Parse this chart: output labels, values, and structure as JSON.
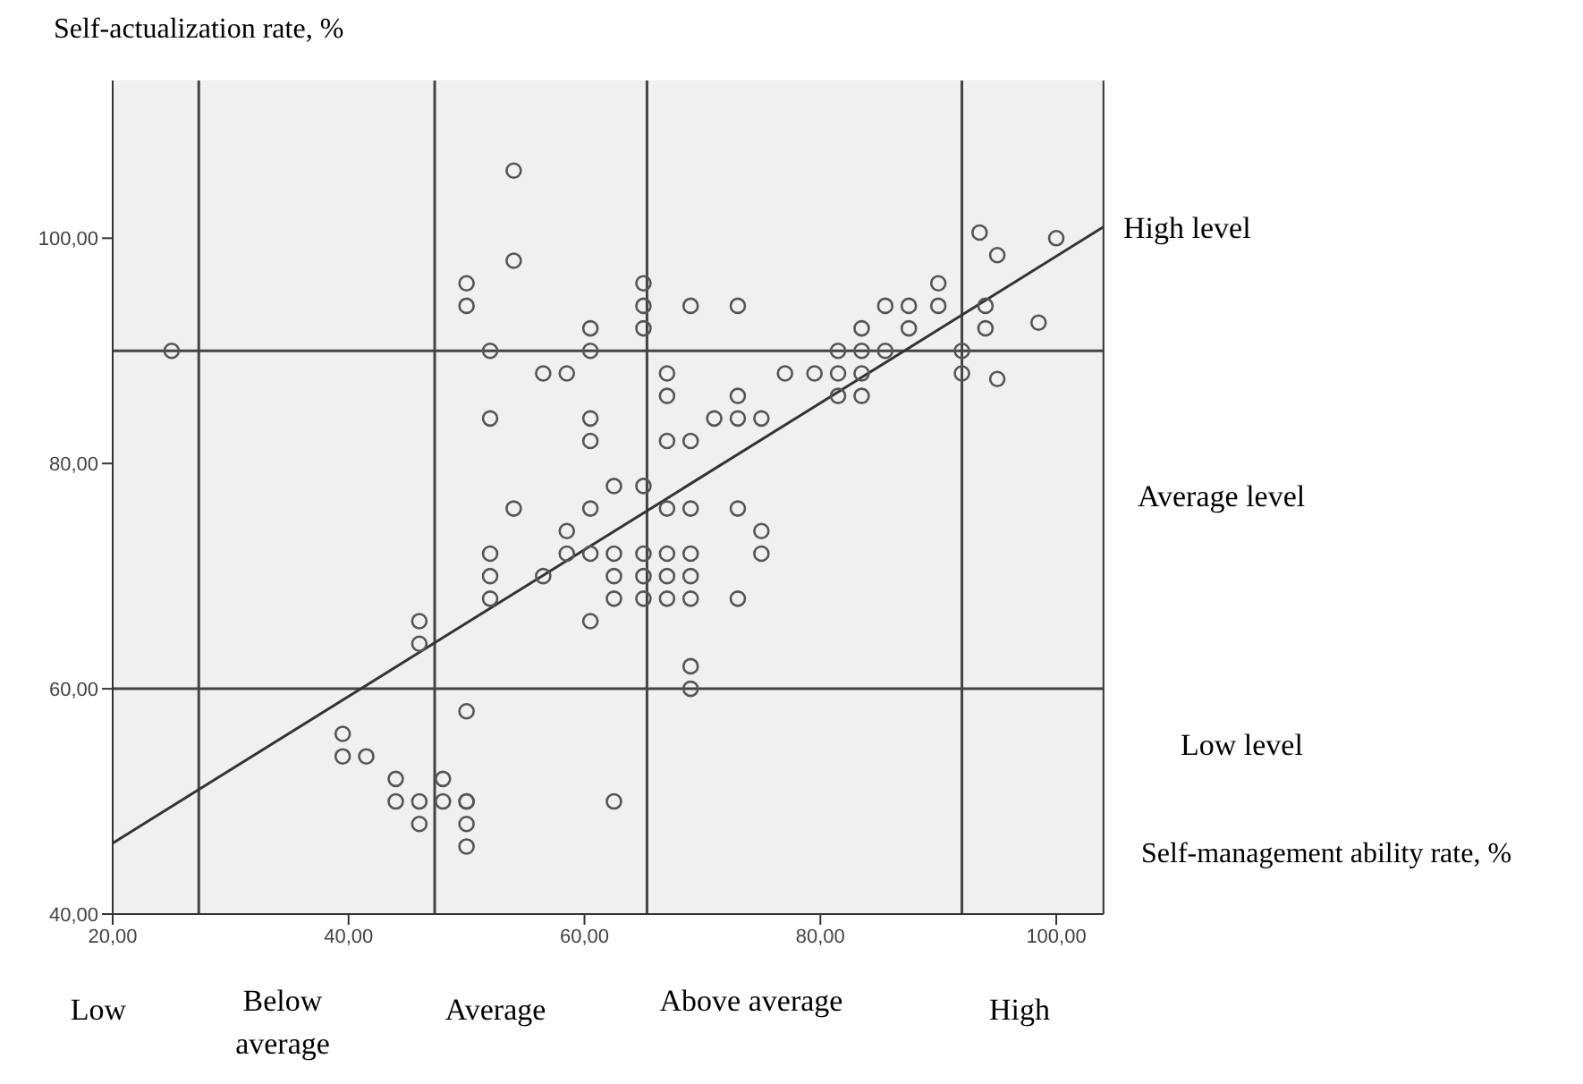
{
  "chart_data": {
    "type": "scatter",
    "xlabel": "Self-management ability rate, %",
    "ylabel": "Self-actualization rate, %",
    "xlim": [
      20,
      104
    ],
    "ylim": [
      40,
      114
    ],
    "xticks": [
      {
        "value": 20,
        "label": "20,00"
      },
      {
        "value": 40,
        "label": "40,00"
      },
      {
        "value": 60,
        "label": "60,00"
      },
      {
        "value": 80,
        "label": "80,00"
      },
      {
        "value": 100,
        "label": "100,00"
      }
    ],
    "yticks": [
      {
        "value": 40,
        "label": "40,00"
      },
      {
        "value": 60,
        "label": "60,00"
      },
      {
        "value": 80,
        "label": "80,00"
      },
      {
        "value": 100,
        "label": "100,00"
      }
    ],
    "grid": false,
    "legend": false,
    "series": [
      {
        "marker": "circle",
        "color": "#555555",
        "x": [
          25,
          39.5,
          39.5,
          41.5,
          44,
          44,
          46,
          46,
          46,
          46,
          48,
          48,
          50,
          50,
          50,
          50,
          50,
          50,
          50,
          52,
          52,
          52,
          52,
          52,
          54,
          54,
          54,
          56.5,
          56.5,
          58.5,
          58.5,
          58.5,
          60.5,
          60.5,
          60.5,
          60.5,
          60.5,
          60.5,
          60.5,
          62.5,
          62.5,
          62.5,
          62.5,
          62.5,
          65,
          65,
          65,
          65,
          65,
          65,
          65,
          67,
          67,
          67,
          67,
          67,
          67,
          67,
          69,
          69,
          69,
          69,
          69,
          69,
          69,
          69,
          71,
          73,
          73,
          73,
          73,
          73,
          75,
          75,
          75,
          77,
          79.5,
          81.5,
          81.5,
          81.5,
          83.5,
          83.5,
          83.5,
          83.5,
          85.5,
          85.5,
          87.5,
          87.5,
          90,
          90,
          92,
          92,
          93.5,
          94,
          94,
          95,
          95,
          98.5,
          100
        ],
        "values": [
          90,
          56,
          54,
          54,
          52,
          50,
          66,
          64,
          50,
          48,
          52,
          50,
          96,
          94,
          58,
          50,
          48,
          46,
          50,
          90,
          84,
          72,
          70,
          68,
          106,
          98,
          76,
          88,
          70,
          88,
          74,
          72,
          92,
          90,
          84,
          82,
          76,
          72,
          66,
          78,
          72,
          70,
          68,
          50,
          96,
          94,
          92,
          78,
          72,
          70,
          68,
          88,
          86,
          82,
          76,
          72,
          70,
          68,
          94,
          82,
          76,
          72,
          70,
          68,
          62,
          60,
          84,
          94,
          86,
          84,
          76,
          68,
          84,
          74,
          72,
          88,
          88,
          90,
          88,
          86,
          92,
          90,
          88,
          86,
          94,
          90,
          94,
          92,
          96,
          94,
          90,
          88,
          100.5,
          94,
          92,
          98.5,
          87.5,
          92.5,
          100
        ]
      },
      {
        "type": "line",
        "marker": "none",
        "color": "#333333",
        "x": [
          20,
          104
        ],
        "values": [
          46.3,
          101
        ]
      }
    ],
    "ref_lines": [
      {
        "axis": "x",
        "value": 27.3
      },
      {
        "axis": "x",
        "value": 47.3
      },
      {
        "axis": "x",
        "value": 65.3
      },
      {
        "axis": "x",
        "value": 92
      },
      {
        "axis": "y",
        "value": 90
      },
      {
        "axis": "y",
        "value": 60
      }
    ],
    "annotations": [
      "Low",
      "Below average",
      "Average",
      "Above average",
      "High",
      "High level",
      "Average level",
      "Low level"
    ]
  }
}
